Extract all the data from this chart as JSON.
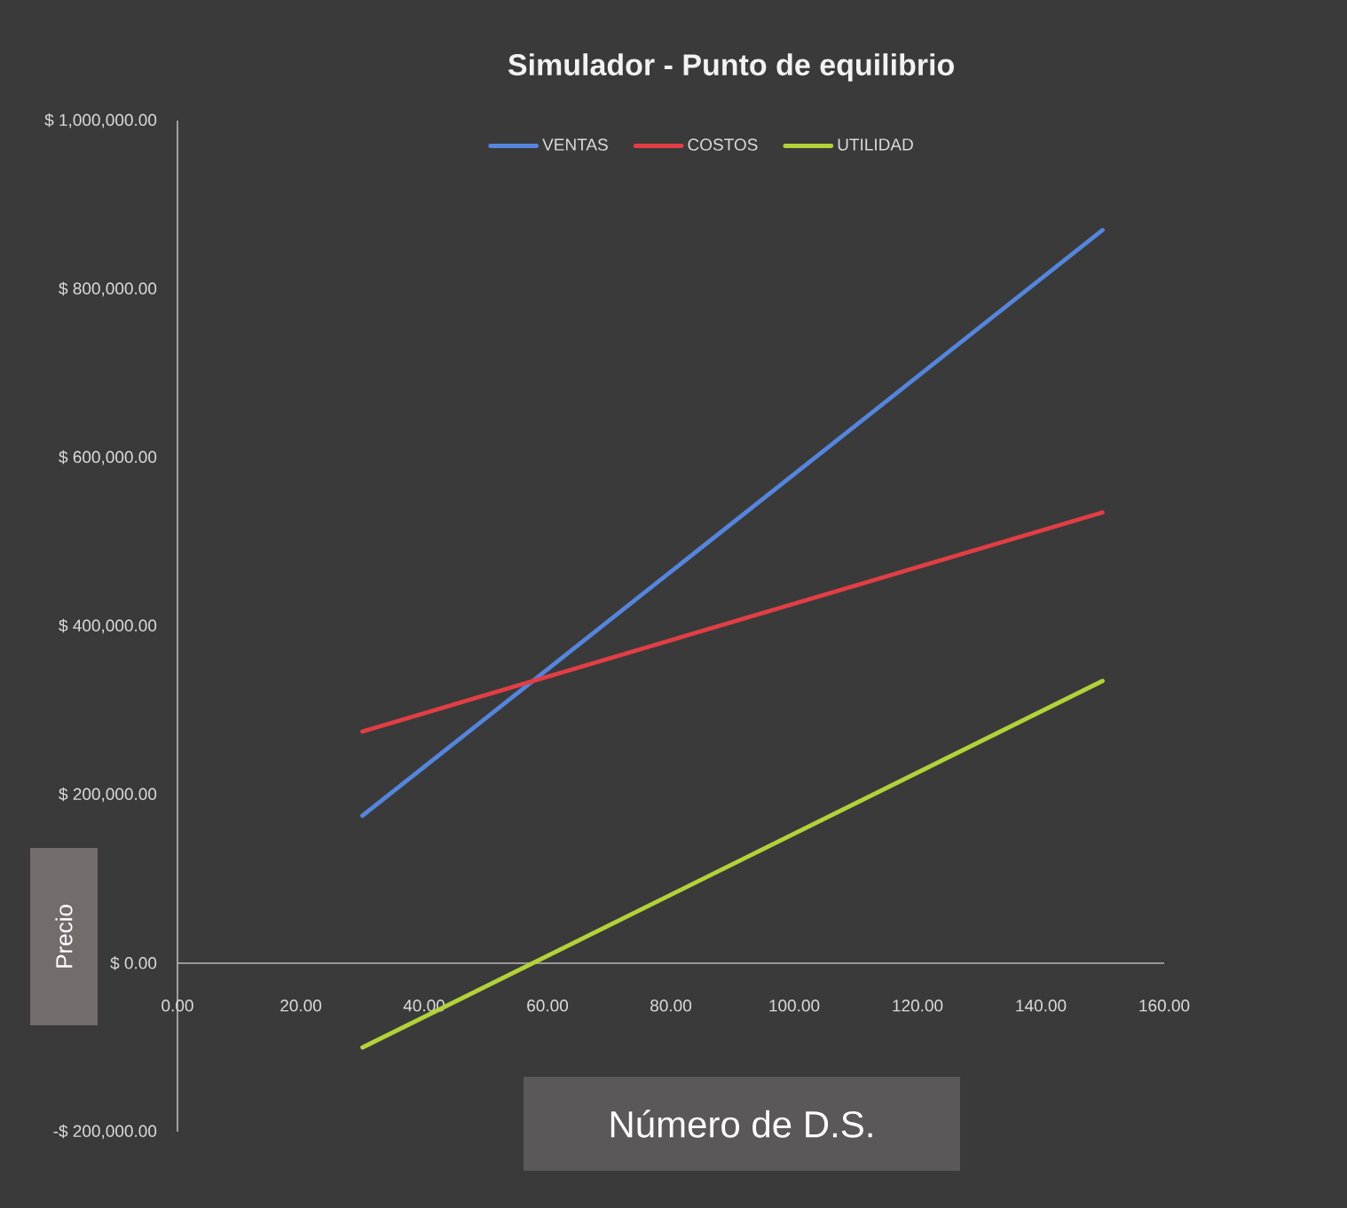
{
  "chart_data": {
    "type": "line",
    "title": "Simulador - Punto de equilibrio",
    "xlabel": "Número de D.S.",
    "ylabel": "Precio",
    "x": [
      30,
      150
    ],
    "series": [
      {
        "name": "VENTAS",
        "color": "#5585dc",
        "values": [
          175000,
          870000
        ]
      },
      {
        "name": "COSTOS",
        "color": "#e23e45",
        "values": [
          275000,
          535000
        ]
      },
      {
        "name": "UTILIDAD",
        "color": "#b3d23a",
        "values": [
          -100000,
          335000
        ]
      }
    ],
    "xlim": [
      0,
      160
    ],
    "ylim": [
      -200000,
      1000000
    ],
    "xticks": [
      {
        "value": 0,
        "label": "0.00"
      },
      {
        "value": 20,
        "label": "20.00"
      },
      {
        "value": 40,
        "label": "40.00"
      },
      {
        "value": 60,
        "label": "60.00"
      },
      {
        "value": 80,
        "label": "80.00"
      },
      {
        "value": 100,
        "label": "100.00"
      },
      {
        "value": 120,
        "label": "120.00"
      },
      {
        "value": 140,
        "label": "140.00"
      },
      {
        "value": 160,
        "label": "160.00"
      }
    ],
    "yticks": [
      {
        "value": -200000,
        "label": "-$ 200,000.00"
      },
      {
        "value": 0,
        "label": "$ 0.00"
      },
      {
        "value": 200000,
        "label": "$ 200,000.00"
      },
      {
        "value": 400000,
        "label": "$ 400,000.00"
      },
      {
        "value": 600000,
        "label": "$ 600,000.00"
      },
      {
        "value": 800000,
        "label": "$ 800,000.00"
      },
      {
        "value": 1000000,
        "label": "$ 1,000,000.00"
      }
    ],
    "legend": "top",
    "marker": "none",
    "line_style": "solid"
  }
}
